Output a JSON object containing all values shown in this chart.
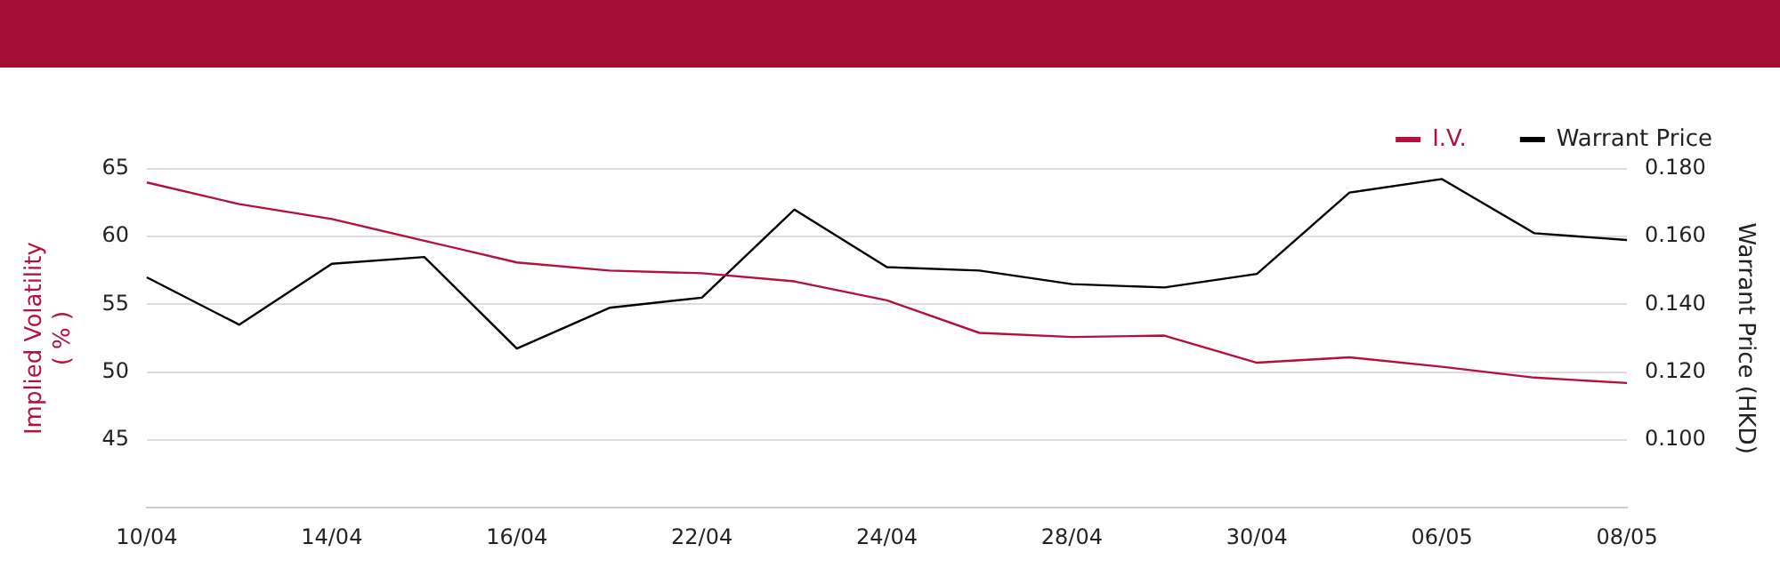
{
  "chart_data": {
    "type": "line",
    "categories": [
      "10/04",
      null,
      "14/04",
      null,
      "16/04",
      null,
      "22/04",
      null,
      "24/04",
      null,
      "28/04",
      null,
      "30/04",
      null,
      "06/05",
      null,
      "08/05"
    ],
    "series": [
      {
        "name": "I.V.",
        "color": "#b5103c",
        "values": [
          64.0,
          62.4,
          61.3,
          59.7,
          58.1,
          57.5,
          57.3,
          56.7,
          55.3,
          52.9,
          52.6,
          52.7,
          50.7,
          51.1,
          50.4,
          49.6,
          49.2
        ]
      },
      {
        "name": "Warrant Price",
        "color": "#000000",
        "axis": "y2",
        "values": [
          0.148,
          0.134,
          0.152,
          0.154,
          0.127,
          0.139,
          0.142,
          0.168,
          0.151,
          0.15,
          0.146,
          0.145,
          0.149,
          0.173,
          0.177,
          0.161,
          0.159
        ]
      }
    ],
    "ylabel": "Implied Volatility\n( % )",
    "y2label": "Warrant Price (HKD)",
    "ylim": [
      40,
      65
    ],
    "yticks": [
      45,
      50,
      55,
      60,
      65
    ],
    "y2lim": [
      0.08,
      0.18
    ],
    "y2ticks": [
      {
        "value": 0.1,
        "label": "0.100"
      },
      {
        "value": 0.12,
        "label": "0.120"
      },
      {
        "value": 0.14,
        "label": "0.140"
      },
      {
        "value": 0.16,
        "label": "0.160"
      },
      {
        "value": 0.18,
        "label": "0.180"
      }
    ],
    "grid": "y",
    "legend": "top right",
    "marker": "none",
    "line_style": "solid"
  }
}
